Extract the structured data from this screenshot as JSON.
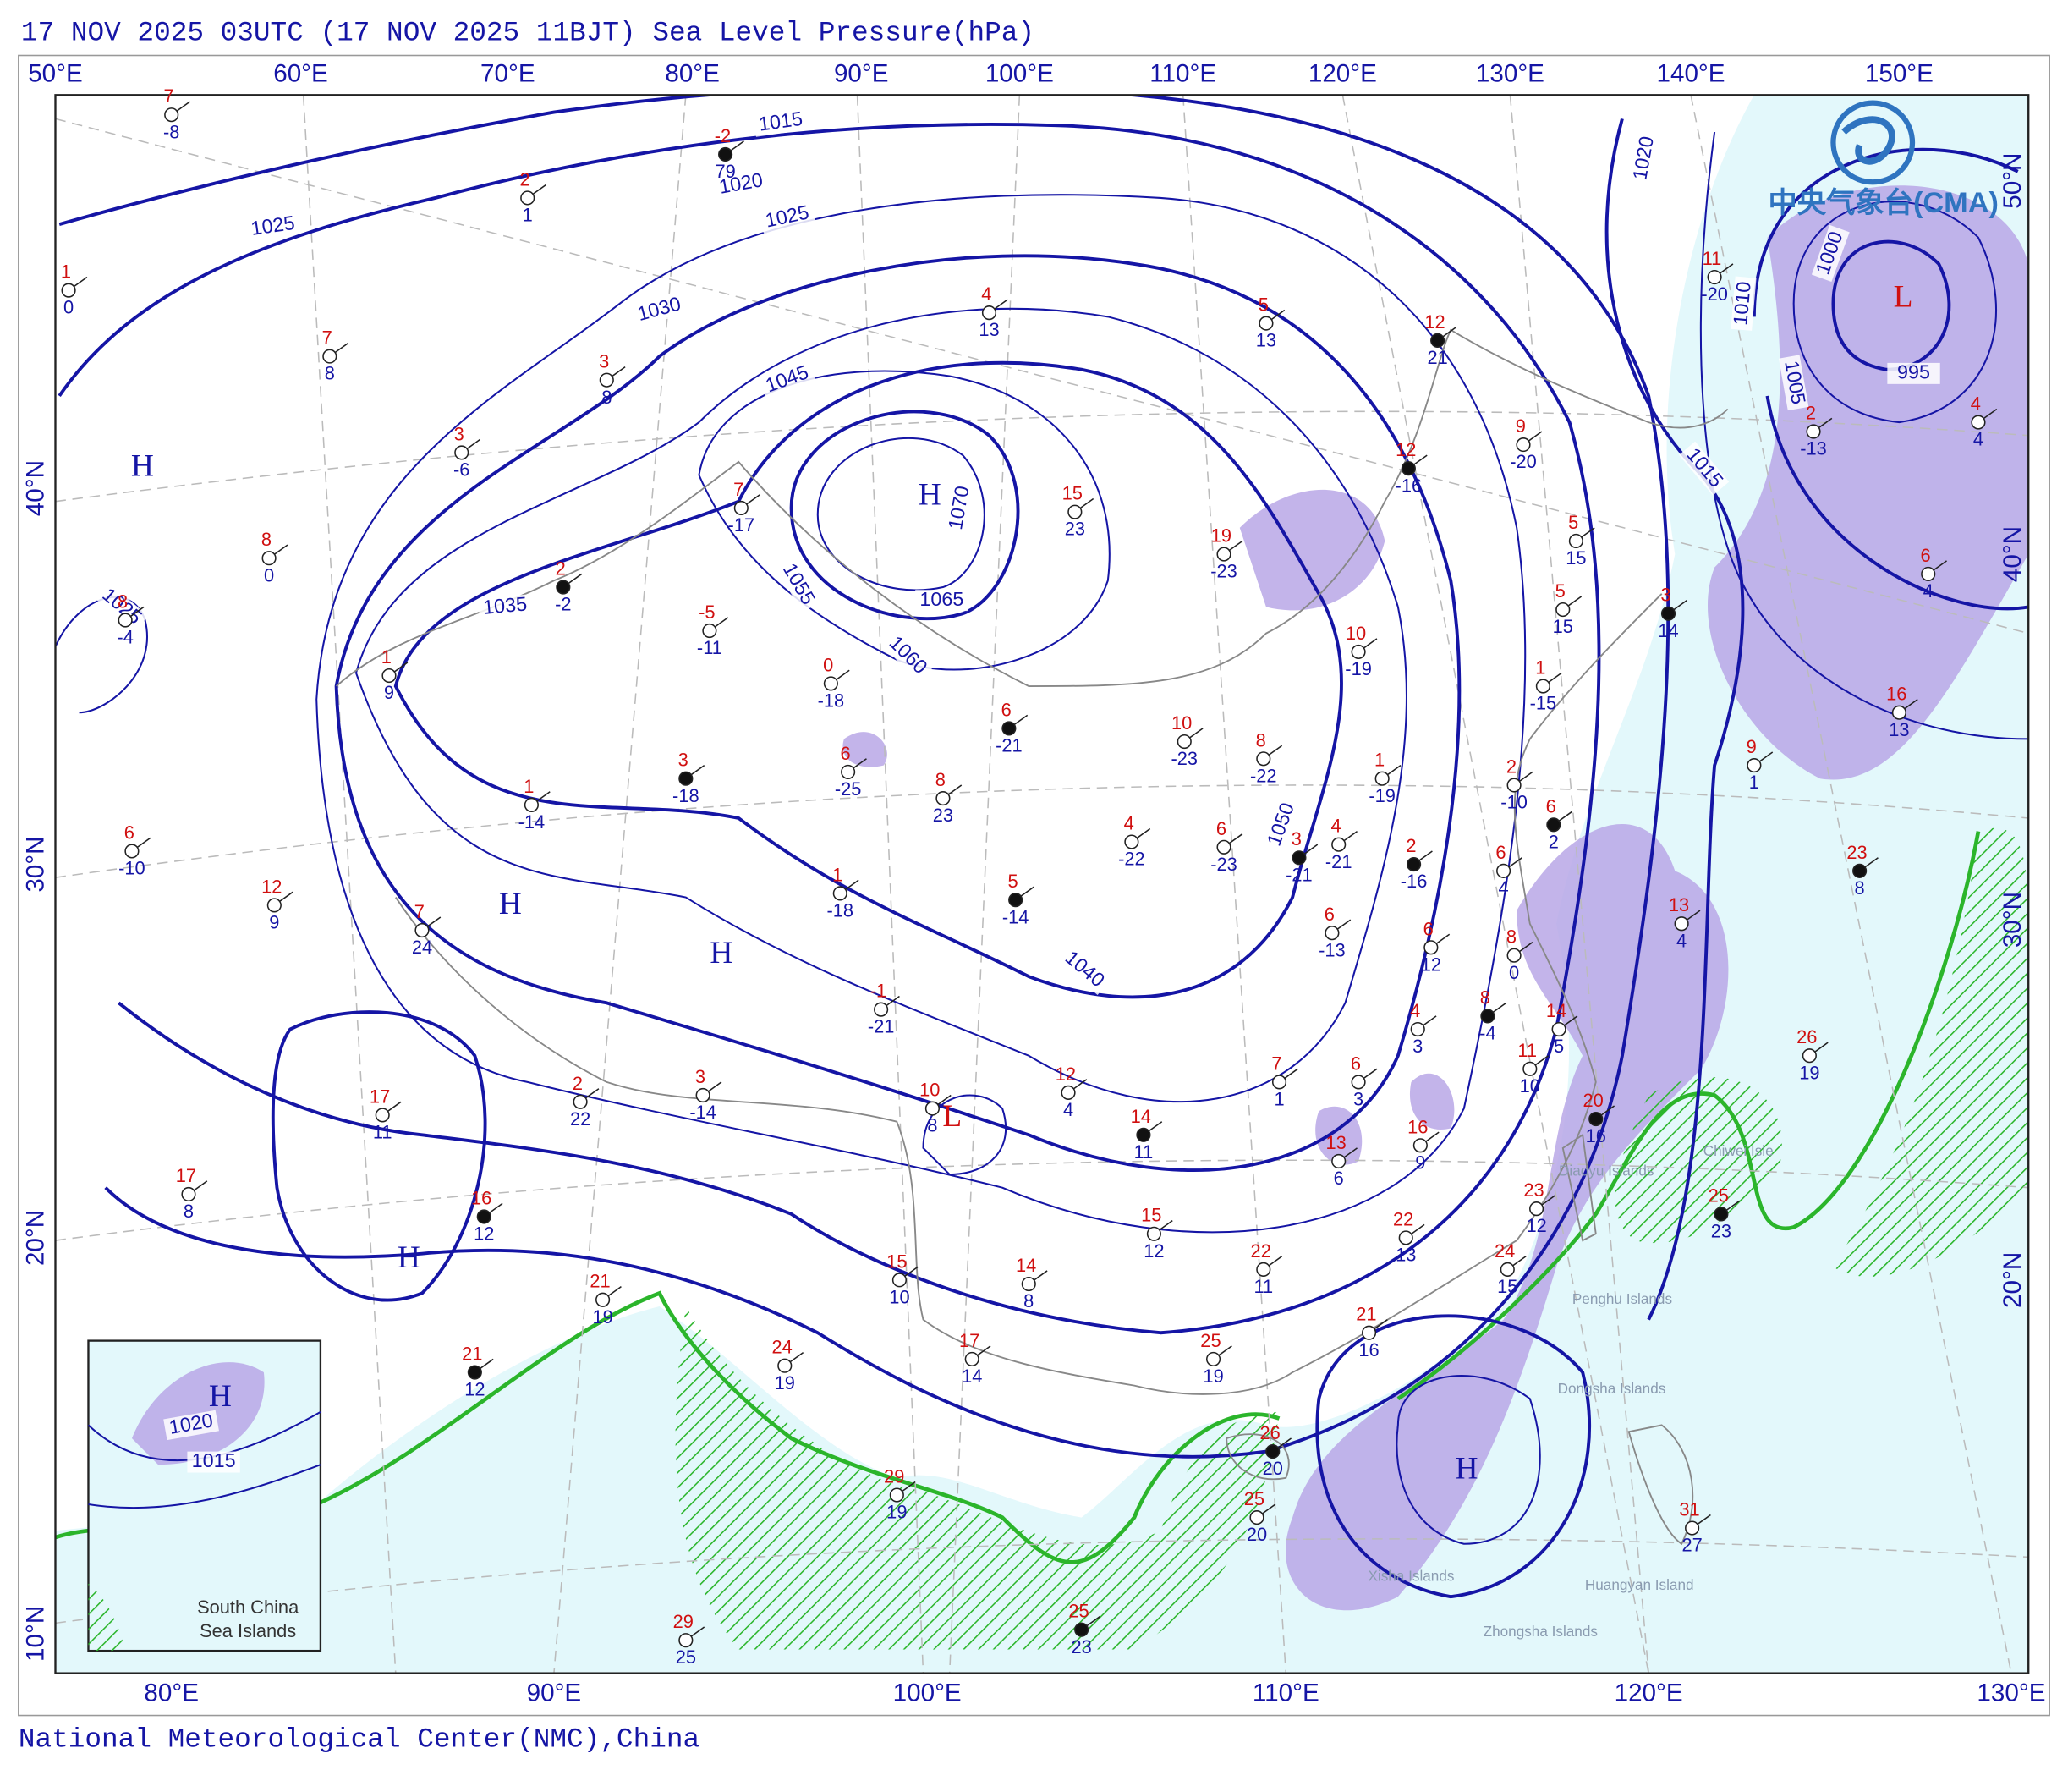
{
  "header": {
    "title": "17 NOV 2025 03UTC (17 NOV 2025 11BJT) Sea Level Pressure(hPa)"
  },
  "footer": "National Meteorological Center(NMC),China",
  "logo": "中央气象台(CMA)",
  "top_lon_labels": [
    "50°E",
    "60°E",
    "70°E",
    "80°E",
    "90°E",
    "100°E",
    "110°E",
    "120°E",
    "130°E",
    "140°E",
    "150°E"
  ],
  "bottom_lon_labels": [
    "80°E",
    "90°E",
    "100°E",
    "110°E",
    "120°E",
    "130°E"
  ],
  "left_lat_labels": [
    "40°N",
    "30°N",
    "20°N",
    "10°N"
  ],
  "right_lat_labels": [
    "50°N",
    "40°N",
    "30°N",
    "20°N"
  ],
  "isobar_labels": [
    "1015",
    "1020",
    "1025",
    "1025",
    "1030",
    "1045",
    "1035",
    "1055",
    "1060",
    "1065",
    "1070",
    "1050",
    "1040",
    "1025",
    "1020",
    "1010",
    "1000",
    "1005",
    "995",
    "1015",
    "1020",
    "1015"
  ],
  "pressure_centers": [
    "H",
    "H",
    "H",
    "H",
    "H",
    "H",
    "L",
    "L",
    "H"
  ],
  "place_labels": [
    "Chiwei Isle",
    "Diaoyu Islands",
    "Penghu Islands",
    "Dongsha Islands",
    "Xisha Islands",
    "Huangyan Island",
    "Zhongsha Islands"
  ],
  "inset_label": [
    "South China",
    "Sea Islands"
  ],
  "stations": [
    {
      "temperature": 7,
      "dew_point": -8
    },
    {
      "temperature": -2,
      "dew_point": 79
    },
    {
      "temperature": 2,
      "dew_point": 1
    },
    {
      "temperature": 1,
      "dew_point": 0
    },
    {
      "temperature": 4,
      "dew_point": 13
    },
    {
      "temperature": 5,
      "dew_point": 13
    },
    {
      "temperature": 12,
      "dew_point": 21
    },
    {
      "temperature": 7,
      "dew_point": 8
    },
    {
      "temperature": 3,
      "dew_point": 8
    },
    {
      "temperature": 3,
      "dew_point": -6
    },
    {
      "temperature": 8,
      "dew_point": 0
    },
    {
      "temperature": 12,
      "dew_point": -16
    },
    {
      "temperature": 9,
      "dew_point": -20
    },
    {
      "temperature": 7,
      "dew_point": -17
    },
    {
      "temperature": 15,
      "dew_point": 23
    },
    {
      "temperature": 19,
      "dew_point": -23
    },
    {
      "temperature": 2,
      "dew_point": -2
    },
    {
      "temperature": 8,
      "dew_point": -4
    },
    {
      "temperature": -5,
      "dew_point": -11
    },
    {
      "temperature": 5,
      "dew_point": 15
    },
    {
      "temperature": 5,
      "dew_point": 15
    },
    {
      "temperature": 3,
      "dew_point": 14
    },
    {
      "temperature": 1,
      "dew_point": 9
    },
    {
      "temperature": 0,
      "dew_point": -18
    },
    {
      "temperature": 10,
      "dew_point": -19
    },
    {
      "temperature": 1,
      "dew_point": -15
    },
    {
      "temperature": 6,
      "dew_point": -21
    },
    {
      "temperature": 10,
      "dew_point": -23
    },
    {
      "temperature": 8,
      "dew_point": -22
    },
    {
      "temperature": 6,
      "dew_point": -25
    },
    {
      "temperature": 8,
      "dew_point": 23
    },
    {
      "temperature": 3,
      "dew_point": -18
    },
    {
      "temperature": 1,
      "dew_point": -14
    },
    {
      "temperature": 6,
      "dew_point": -10
    },
    {
      "temperature": 1,
      "dew_point": -19
    },
    {
      "temperature": 2,
      "dew_point": -10
    },
    {
      "temperature": 6,
      "dew_point": 2
    },
    {
      "temperature": 9,
      "dew_point": 1
    },
    {
      "temperature": 16,
      "dew_point": 13
    },
    {
      "temperature": 4,
      "dew_point": -22
    },
    {
      "temperature": 6,
      "dew_point": -23
    },
    {
      "temperature": 3,
      "dew_point": -21
    },
    {
      "temperature": 4,
      "dew_point": -21
    },
    {
      "temperature": 12,
      "dew_point": 9
    },
    {
      "temperature": 7,
      "dew_point": 24
    },
    {
      "temperature": 1,
      "dew_point": -18
    },
    {
      "temperature": 5,
      "dew_point": -14
    },
    {
      "temperature": 2,
      "dew_point": -13
    },
    {
      "temperature": 11,
      "dew_point": -20
    },
    {
      "temperature": 4,
      "dew_point": 4
    },
    {
      "temperature": 6,
      "dew_point": 4
    },
    {
      "temperature": 23,
      "dew_point": 8
    },
    {
      "temperature": 26,
      "dew_point": 19
    },
    {
      "temperature": 13,
      "dew_point": 4
    },
    {
      "temperature": 6,
      "dew_point": -13
    },
    {
      "temperature": 6,
      "dew_point": 12
    },
    {
      "temperature": 2,
      "dew_point": -16
    },
    {
      "temperature": 8,
      "dew_point": 0
    },
    {
      "temperature": 6,
      "dew_point": 4
    },
    {
      "temperature": -1,
      "dew_point": -21
    },
    {
      "temperature": 4,
      "dew_point": 3
    },
    {
      "temperature": 8,
      "dew_point": -4
    },
    {
      "temperature": 14,
      "dew_point": 5
    },
    {
      "temperature": 11,
      "dew_point": 10
    },
    {
      "temperature": 7,
      "dew_point": 1
    },
    {
      "temperature": 6,
      "dew_point": 3
    },
    {
      "temperature": 20,
      "dew_point": 16
    },
    {
      "temperature": 2,
      "dew_point": 22
    },
    {
      "temperature": 3,
      "dew_point": -14
    },
    {
      "temperature": 10,
      "dew_point": 8
    },
    {
      "temperature": 12,
      "dew_point": 4
    },
    {
      "temperature": 14,
      "dew_point": 11
    },
    {
      "temperature": 13,
      "dew_point": 6
    },
    {
      "temperature": 16,
      "dew_point": 9
    },
    {
      "temperature": 17,
      "dew_point": 11
    },
    {
      "temperature": 17,
      "dew_point": 8
    },
    {
      "temperature": 16,
      "dew_point": 12
    },
    {
      "temperature": 15,
      "dew_point": 12
    },
    {
      "temperature": 22,
      "dew_point": 11
    },
    {
      "temperature": 22,
      "dew_point": 13
    },
    {
      "temperature": 23,
      "dew_point": 12
    },
    {
      "temperature": 25,
      "dew_point": 23
    },
    {
      "temperature": 15,
      "dew_point": 10
    },
    {
      "temperature": 14,
      "dew_point": 8
    },
    {
      "temperature": 21,
      "dew_point": 19
    },
    {
      "temperature": 24,
      "dew_point": 15
    },
    {
      "temperature": 21,
      "dew_point": 12
    },
    {
      "temperature": 24,
      "dew_point": 19
    },
    {
      "temperature": 17,
      "dew_point": 14
    },
    {
      "temperature": 25,
      "dew_point": 19
    },
    {
      "temperature": 21,
      "dew_point": 16
    },
    {
      "temperature": 26,
      "dew_point": 20
    },
    {
      "temperature": 25,
      "dew_point": 20
    },
    {
      "temperature": 29,
      "dew_point": 19
    },
    {
      "temperature": 31,
      "dew_point": 27
    },
    {
      "temperature": 29,
      "dew_point": 25
    },
    {
      "temperature": 25,
      "dew_point": 23
    }
  ]
}
